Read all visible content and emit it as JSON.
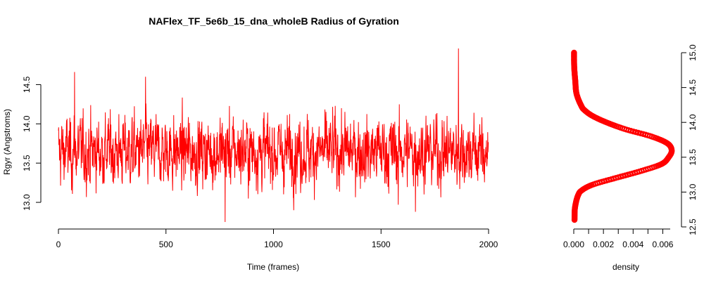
{
  "chart_data": [
    {
      "type": "line",
      "title": "NAFlex_TF_5e6b_15_dna_wholeB Radius of Gyration",
      "xlabel": "Time (frames)",
      "ylabel": "Rgyr (Angstroms)",
      "xlim": [
        0,
        2000
      ],
      "ylim": [
        12.75,
        14.96
      ],
      "x_ticks": [
        "0",
        "500",
        "1000",
        "1500",
        "2000"
      ],
      "y_ticks": [
        "13.0",
        "13.5",
        "14.0",
        "14.5"
      ],
      "grid": false,
      "color": "#ff0000",
      "series": [
        {
          "n_frames": 2000,
          "mean": 13.65,
          "sd": 0.22,
          "min": 12.75,
          "max": 14.96,
          "peaks": [
            [
              75,
              14.66
            ],
            [
              405,
              14.6
            ],
            [
              775,
              12.75
            ],
            [
              1860,
              14.96
            ],
            [
              1580,
              12.97
            ],
            [
              1660,
              12.88
            ]
          ]
        }
      ]
    },
    {
      "type": "area",
      "xlabel": "density",
      "ylabel": "",
      "xlim": [
        0,
        0.0065
      ],
      "ylim": [
        12.5,
        15.0
      ],
      "x_ticks": [
        "0.000",
        "0.002",
        "0.004",
        "0.006"
      ],
      "y_ticks": [
        "12.5",
        "13.0",
        "13.5",
        "14.0",
        "14.5",
        "15.0"
      ],
      "y_axis_side": "right",
      "grid": false,
      "color": "#ff0000",
      "density_curve": {
        "x": [
          12.6,
          12.8,
          13.0,
          13.1,
          13.2,
          13.3,
          13.4,
          13.5,
          13.6,
          13.7,
          13.8,
          13.9,
          14.0,
          14.1,
          14.2,
          14.4,
          14.6,
          14.8,
          15.0
        ],
        "density": [
          5e-05,
          0.0001,
          0.0004,
          0.0012,
          0.0028,
          0.0045,
          0.0059,
          0.0064,
          0.0066,
          0.0063,
          0.0052,
          0.0035,
          0.0022,
          0.0012,
          0.0006,
          0.0002,
          0.0001,
          3e-05,
          2e-05
        ]
      }
    }
  ]
}
